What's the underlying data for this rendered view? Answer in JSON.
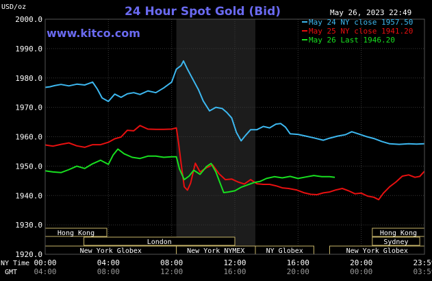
{
  "chart_data": {
    "type": "line",
    "title": "24 Hour Spot Gold (Bid)",
    "unit_label": "USD/oz",
    "watermark": "www.kitco.com",
    "timestamp": "May 26, 2023 22:49",
    "ylim": [
      1920,
      2000
    ],
    "yticks": [
      "2000.0",
      "1990.0",
      "1980.0",
      "1970.0",
      "1960.0",
      "1950.0",
      "1940.0",
      "1930.0",
      "1920.0"
    ],
    "ytick_values": [
      2000,
      1990,
      1980,
      1970,
      1960,
      1950,
      1940,
      1930,
      1920
    ],
    "xlim": [
      0,
      24
    ],
    "x_axis_rows": {
      "row1_label": "NY Time",
      "row2_label": "GMT",
      "ny_ticks": [
        "00:00",
        "04:00",
        "08:00",
        "12:00",
        "16:00",
        "20:00",
        "23:59"
      ],
      "gmt_ticks": [
        "04:00",
        "08:00",
        "12:00",
        "16:00",
        "20:00",
        "00:00",
        "03:59"
      ],
      "tick_hours": [
        0,
        4,
        8,
        12,
        16,
        20,
        24
      ]
    },
    "shaded_region": [
      8.3,
      13.3
    ],
    "legend": [
      {
        "name": "May 24 NY close 1957.50",
        "color": "#3db8f0"
      },
      {
        "name": "May 25 NY close 1941.20",
        "color": "#e81010"
      },
      {
        "name": "May 26 Last 1946.20",
        "color": "#18e020"
      }
    ],
    "series": [
      {
        "name": "May 24 NY close 1957.50",
        "color": "#3db8f0",
        "points": [
          [
            0,
            1976.8
          ],
          [
            0.3,
            1977.0
          ],
          [
            0.6,
            1977.4
          ],
          [
            1.0,
            1977.8
          ],
          [
            1.5,
            1977.3
          ],
          [
            2.0,
            1977.9
          ],
          [
            2.5,
            1977.6
          ],
          [
            3.0,
            1978.6
          ],
          [
            3.3,
            1976.2
          ],
          [
            3.6,
            1973.2
          ],
          [
            4.0,
            1972.0
          ],
          [
            4.4,
            1974.5
          ],
          [
            4.8,
            1973.4
          ],
          [
            5.2,
            1974.6
          ],
          [
            5.6,
            1975.0
          ],
          [
            6.0,
            1974.4
          ],
          [
            6.5,
            1975.6
          ],
          [
            7.0,
            1975.0
          ],
          [
            7.5,
            1976.6
          ],
          [
            8.0,
            1978.6
          ],
          [
            8.3,
            1983.0
          ],
          [
            8.6,
            1984.2
          ],
          [
            8.75,
            1985.8
          ],
          [
            9.0,
            1983.0
          ],
          [
            9.3,
            1980.0
          ],
          [
            9.7,
            1976.0
          ],
          [
            10.0,
            1972.2
          ],
          [
            10.4,
            1968.8
          ],
          [
            10.8,
            1970.0
          ],
          [
            11.2,
            1969.6
          ],
          [
            11.5,
            1968.2
          ],
          [
            11.8,
            1966.4
          ],
          [
            12.1,
            1961.5
          ],
          [
            12.4,
            1958.6
          ],
          [
            12.7,
            1960.6
          ],
          [
            13.0,
            1962.4
          ],
          [
            13.4,
            1962.4
          ],
          [
            13.8,
            1963.5
          ],
          [
            14.2,
            1963.0
          ],
          [
            14.6,
            1964.3
          ],
          [
            14.9,
            1964.5
          ],
          [
            15.2,
            1963.3
          ],
          [
            15.5,
            1961.0
          ],
          [
            16.0,
            1960.8
          ],
          [
            16.5,
            1960.2
          ],
          [
            17.0,
            1959.6
          ],
          [
            17.6,
            1958.8
          ],
          [
            18.0,
            1959.5
          ],
          [
            18.5,
            1960.2
          ],
          [
            19.0,
            1960.7
          ],
          [
            19.4,
            1961.7
          ],
          [
            19.8,
            1961.0
          ],
          [
            20.3,
            1960.1
          ],
          [
            20.8,
            1959.4
          ],
          [
            21.3,
            1958.4
          ],
          [
            21.8,
            1957.6
          ],
          [
            22.4,
            1957.4
          ],
          [
            23.0,
            1957.6
          ],
          [
            23.5,
            1957.5
          ],
          [
            23.99,
            1957.6
          ]
        ]
      },
      {
        "name": "May 25 NY close 1941.20",
        "color": "#e81010",
        "points": [
          [
            0,
            1957.2
          ],
          [
            0.5,
            1956.8
          ],
          [
            1.0,
            1957.4
          ],
          [
            1.5,
            1957.9
          ],
          [
            2.0,
            1956.9
          ],
          [
            2.5,
            1956.4
          ],
          [
            3.0,
            1957.3
          ],
          [
            3.5,
            1957.3
          ],
          [
            4.0,
            1958.1
          ],
          [
            4.4,
            1959.3
          ],
          [
            4.8,
            1959.9
          ],
          [
            5.2,
            1962.2
          ],
          [
            5.6,
            1962.0
          ],
          [
            6.0,
            1963.8
          ],
          [
            6.5,
            1962.6
          ],
          [
            7.0,
            1962.5
          ],
          [
            7.5,
            1962.5
          ],
          [
            8.0,
            1962.6
          ],
          [
            8.3,
            1963.0
          ],
          [
            8.45,
            1957.4
          ],
          [
            8.6,
            1951.0
          ],
          [
            8.8,
            1943.0
          ],
          [
            9.0,
            1941.8
          ],
          [
            9.2,
            1944.2
          ],
          [
            9.5,
            1951.0
          ],
          [
            9.8,
            1948.0
          ],
          [
            10.2,
            1949.4
          ],
          [
            10.6,
            1950.4
          ],
          [
            11.0,
            1947.4
          ],
          [
            11.4,
            1945.4
          ],
          [
            11.8,
            1945.6
          ],
          [
            12.2,
            1944.6
          ],
          [
            12.6,
            1943.9
          ],
          [
            13.0,
            1945.4
          ],
          [
            13.4,
            1944.0
          ],
          [
            13.8,
            1943.8
          ],
          [
            14.2,
            1943.8
          ],
          [
            14.6,
            1943.3
          ],
          [
            15.0,
            1942.6
          ],
          [
            15.4,
            1942.4
          ],
          [
            15.9,
            1941.9
          ],
          [
            16.4,
            1940.9
          ],
          [
            16.8,
            1940.4
          ],
          [
            17.2,
            1940.3
          ],
          [
            17.6,
            1940.9
          ],
          [
            18.0,
            1941.2
          ],
          [
            18.4,
            1941.9
          ],
          [
            18.8,
            1942.4
          ],
          [
            19.2,
            1941.6
          ],
          [
            19.6,
            1940.6
          ],
          [
            20.0,
            1940.8
          ],
          [
            20.4,
            1939.8
          ],
          [
            20.8,
            1939.4
          ],
          [
            21.1,
            1938.6
          ],
          [
            21.4,
            1940.8
          ],
          [
            21.8,
            1943.0
          ],
          [
            22.2,
            1944.6
          ],
          [
            22.6,
            1946.6
          ],
          [
            23.0,
            1947.0
          ],
          [
            23.4,
            1946.2
          ],
          [
            23.7,
            1946.5
          ],
          [
            23.99,
            1948.2
          ]
        ]
      },
      {
        "name": "May 26 Last 1946.20",
        "color": "#18e020",
        "points": [
          [
            0,
            1948.4
          ],
          [
            0.5,
            1948.0
          ],
          [
            1.0,
            1947.8
          ],
          [
            1.5,
            1948.8
          ],
          [
            2.0,
            1950.0
          ],
          [
            2.5,
            1949.2
          ],
          [
            3.0,
            1950.8
          ],
          [
            3.5,
            1952.0
          ],
          [
            4.0,
            1950.6
          ],
          [
            4.3,
            1953.8
          ],
          [
            4.6,
            1955.8
          ],
          [
            5.0,
            1954.2
          ],
          [
            5.5,
            1953.0
          ],
          [
            6.0,
            1952.6
          ],
          [
            6.5,
            1953.4
          ],
          [
            7.0,
            1953.4
          ],
          [
            7.5,
            1953.0
          ],
          [
            8.0,
            1953.2
          ],
          [
            8.3,
            1953.2
          ],
          [
            8.5,
            1949.0
          ],
          [
            8.8,
            1945.4
          ],
          [
            9.1,
            1946.6
          ],
          [
            9.4,
            1948.6
          ],
          [
            9.8,
            1947.2
          ],
          [
            10.2,
            1949.8
          ],
          [
            10.5,
            1950.9
          ],
          [
            10.8,
            1948.0
          ],
          [
            11.0,
            1945.2
          ],
          [
            11.3,
            1941.0
          ],
          [
            11.6,
            1941.2
          ],
          [
            12.0,
            1941.6
          ],
          [
            12.4,
            1942.8
          ],
          [
            12.8,
            1943.6
          ],
          [
            13.2,
            1944.4
          ],
          [
            13.6,
            1944.8
          ],
          [
            14.0,
            1945.8
          ],
          [
            14.5,
            1946.4
          ],
          [
            15.0,
            1946.0
          ],
          [
            15.5,
            1946.5
          ],
          [
            16.0,
            1945.8
          ],
          [
            16.5,
            1946.3
          ],
          [
            17.0,
            1946.8
          ],
          [
            17.5,
            1946.4
          ],
          [
            18.0,
            1946.4
          ],
          [
            18.33,
            1946.2
          ]
        ]
      }
    ],
    "sessions": [
      {
        "name": "Hong Kong",
        "row": 0,
        "start": 0,
        "end": 3.9
      },
      {
        "name": "Hong Kong",
        "row": 0,
        "start": 20.7,
        "end": 24
      },
      {
        "name": "London",
        "row": 1,
        "start": 2.45,
        "end": 12.0
      },
      {
        "name": "Sydney",
        "row": 1,
        "start": 20.7,
        "end": 23.7
      },
      {
        "name": "New York Globex",
        "row": 2,
        "start": 0,
        "end": 8.3
      },
      {
        "name": "New York NYMEX",
        "row": 2,
        "start": 8.3,
        "end": 13.3
      },
      {
        "name": "NY Globex",
        "row": 2,
        "start": 13.3,
        "end": 17.0
      },
      {
        "name": "New York Globex",
        "row": 2,
        "start": 18.0,
        "end": 24
      }
    ]
  }
}
